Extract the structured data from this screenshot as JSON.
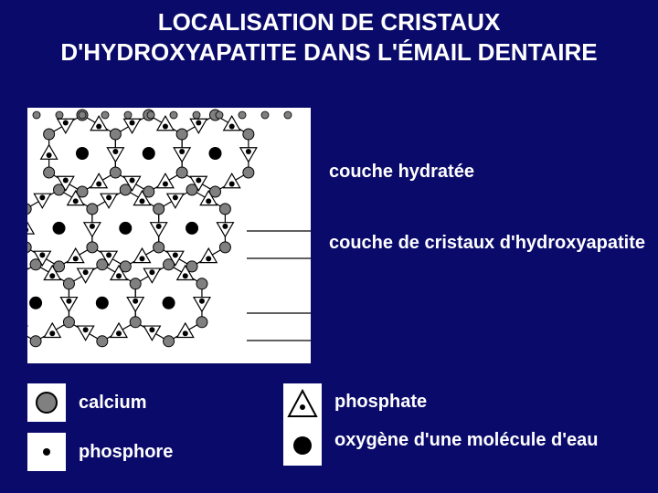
{
  "title": "LOCALISATION DE CRISTAUX D'HYDROXYAPATITE DANS L'ÉMAIL DENTAIRE",
  "layers": {
    "hydrated": "couche hydratée",
    "crystal": "couche de cristaux d'hydroxyapatite"
  },
  "legend": {
    "calcium": "calcium",
    "phosphore": "phosphore",
    "phosphate": "phosphate",
    "oxygen_water": "oxygène d'une molécule d'eau"
  },
  "style": {
    "background": "#0a0a6b",
    "text_color": "#ffffff",
    "title_fontsize": 26,
    "label_fontsize": 20,
    "diagram": {
      "bg": "#ffffff",
      "stroke": "#000000",
      "calcium_fill": "#808080",
      "calcium_stroke": "#000000",
      "calcium_r": 6,
      "phosphore_fill": "#000000",
      "phosphore_r": 3,
      "oxygen_fill": "#000000",
      "oxygen_r": 7,
      "triangle_size": 18,
      "hex_side": 42,
      "shear": 0.35,
      "rows": 3,
      "cols": 3,
      "leader_lines": [
        135,
        165,
        225,
        255
      ]
    },
    "legend_icons": {
      "calcium": {
        "type": "circle",
        "r": 11,
        "fill": "#808080",
        "stroke": "#000000",
        "sw": 2
      },
      "phosphore": {
        "type": "circle",
        "r": 4,
        "fill": "#000000"
      },
      "phosphate": {
        "type": "triangle",
        "size": 30,
        "stroke": "#000000",
        "dot_r": 3
      },
      "oxygen": {
        "type": "circle",
        "r": 10,
        "fill": "#000000"
      }
    }
  }
}
